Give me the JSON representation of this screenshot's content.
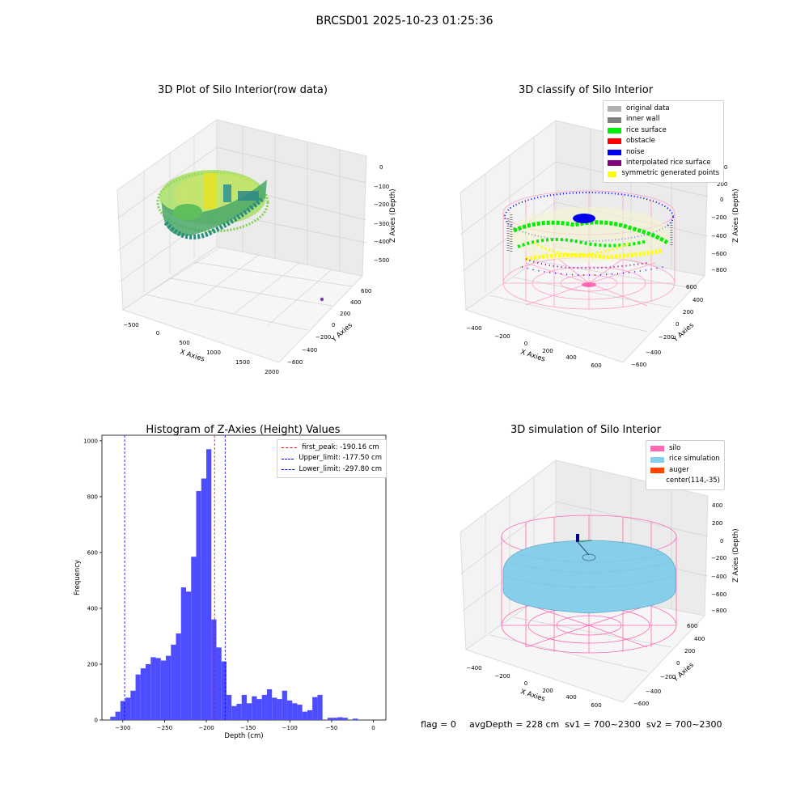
{
  "suptitle": "BRCSD01 2025-10-23 01:25:36",
  "footer": {
    "flag": "flag = 0",
    "avg_depth": "avgDepth = 228 cm  sv1 = 700~2300  sv2 = 700~2300"
  },
  "colors": {
    "original_data": "#b0b0b0",
    "inner_wall": "#808080",
    "rice_surface": "#00ee00",
    "obstacle": "#ff0000",
    "noise": "#0000ee",
    "interpolated_rice_surface": "#800080",
    "symmetric_generated_points": "#ffff00",
    "silo": "#ff69b4",
    "rice_simulation": "#87ceeb",
    "auger": "#ff4500",
    "histogram_bar": "#4d4dff",
    "first_peak_line": "#ff0000",
    "limit_line": "#0000ff"
  },
  "plot1": {
    "title": "3D Plot of Silo Interior(row data)",
    "xlabel": "X Axies",
    "ylabel": "Y Axies",
    "zlabel": "Z Axies (Depth)",
    "xticks": [
      "−500",
      "0",
      "500",
      "1000",
      "1500",
      "2000"
    ],
    "yticks": [
      "−600",
      "−400",
      "−200",
      "0",
      "200",
      "400",
      "600"
    ],
    "zticks": [
      "0",
      "−100",
      "−200",
      "−300",
      "−400",
      "−500"
    ]
  },
  "plot2": {
    "title": "3D classify of Silo Interior",
    "xlabel": "X Axies",
    "ylabel": "Y Axies",
    "zlabel": "Z Axies (Depth)",
    "xticks": [
      "−400",
      "−200",
      "0",
      "200",
      "400",
      "600"
    ],
    "yticks": [
      "−600",
      "−400",
      "−200",
      "0",
      "200",
      "400",
      "600"
    ],
    "zticks": [
      "200",
      "0",
      "−200",
      "−400",
      "−600",
      "−800"
    ],
    "legend": [
      {
        "label": "original data",
        "color_key": "original_data"
      },
      {
        "label": "inner wall",
        "color_key": "inner_wall"
      },
      {
        "label": "rice surface",
        "color_key": "rice_surface"
      },
      {
        "label": "obstacle",
        "color_key": "obstacle"
      },
      {
        "label": "noise",
        "color_key": "noise"
      },
      {
        "label": "interpolated rice surface",
        "color_key": "interpolated_rice_surface"
      },
      {
        "label": "symmetric generated points",
        "color_key": "symmetric_generated_points"
      }
    ]
  },
  "plot4": {
    "title": "3D simulation of Silo Interior",
    "xlabel": "X Axies",
    "ylabel": "Y Axies",
    "zlabel": "Z Axies (Depth)",
    "xticks": [
      "−400",
      "−200",
      "0",
      "200",
      "400",
      "600"
    ],
    "yticks": [
      "−600",
      "−400",
      "−200",
      "0",
      "200",
      "400",
      "600"
    ],
    "zticks": [
      "400",
      "200",
      "0",
      "−200",
      "−400",
      "−600",
      "−800"
    ],
    "legend": [
      {
        "label": "silo",
        "color_key": "silo"
      },
      {
        "label": "rice simulation",
        "color_key": "rice_simulation"
      },
      {
        "label": "auger",
        "color_key": "auger"
      },
      {
        "label": "center(114,-35)",
        "color_key": ""
      }
    ]
  },
  "chart_data": [
    {
      "type": "histogram",
      "title": "Histogram of Z-Axies (Height) Values",
      "xlabel": "Depth (cm)",
      "ylabel": "Frequency",
      "xlim": [
        -325,
        15
      ],
      "ylim": [
        0,
        1020
      ],
      "xticks": [
        -300,
        -250,
        -200,
        -150,
        -100,
        -50,
        0
      ],
      "xtick_labels": [
        "−300",
        "−250",
        "−200",
        "−150",
        "−100",
        "−50",
        "0"
      ],
      "yticks": [
        0,
        200,
        400,
        600,
        800,
        1000
      ],
      "bin_start": -315,
      "bin_width": 6.05,
      "counts": [
        12,
        30,
        68,
        80,
        105,
        163,
        185,
        200,
        225,
        222,
        213,
        230,
        270,
        310,
        475,
        460,
        585,
        820,
        865,
        970,
        360,
        260,
        210,
        90,
        50,
        58,
        90,
        60,
        85,
        75,
        90,
        110,
        80,
        75,
        105,
        70,
        60,
        55,
        30,
        35,
        82,
        90,
        0,
        8,
        8,
        10,
        8,
        0,
        5
      ],
      "vlines": [
        {
          "name": "first_peak",
          "value": -190.16,
          "label": "first_peak: -190.16 cm",
          "color_key": "first_peak_line"
        },
        {
          "name": "upper_limit",
          "value": -177.5,
          "label": "Upper_limit: -177.50 cm",
          "color_key": "limit_line"
        },
        {
          "name": "lower_limit",
          "value": -297.8,
          "label": "Lower_limit: -297.80 cm",
          "color_key": "limit_line"
        }
      ],
      "legend_position": "upper right"
    }
  ]
}
